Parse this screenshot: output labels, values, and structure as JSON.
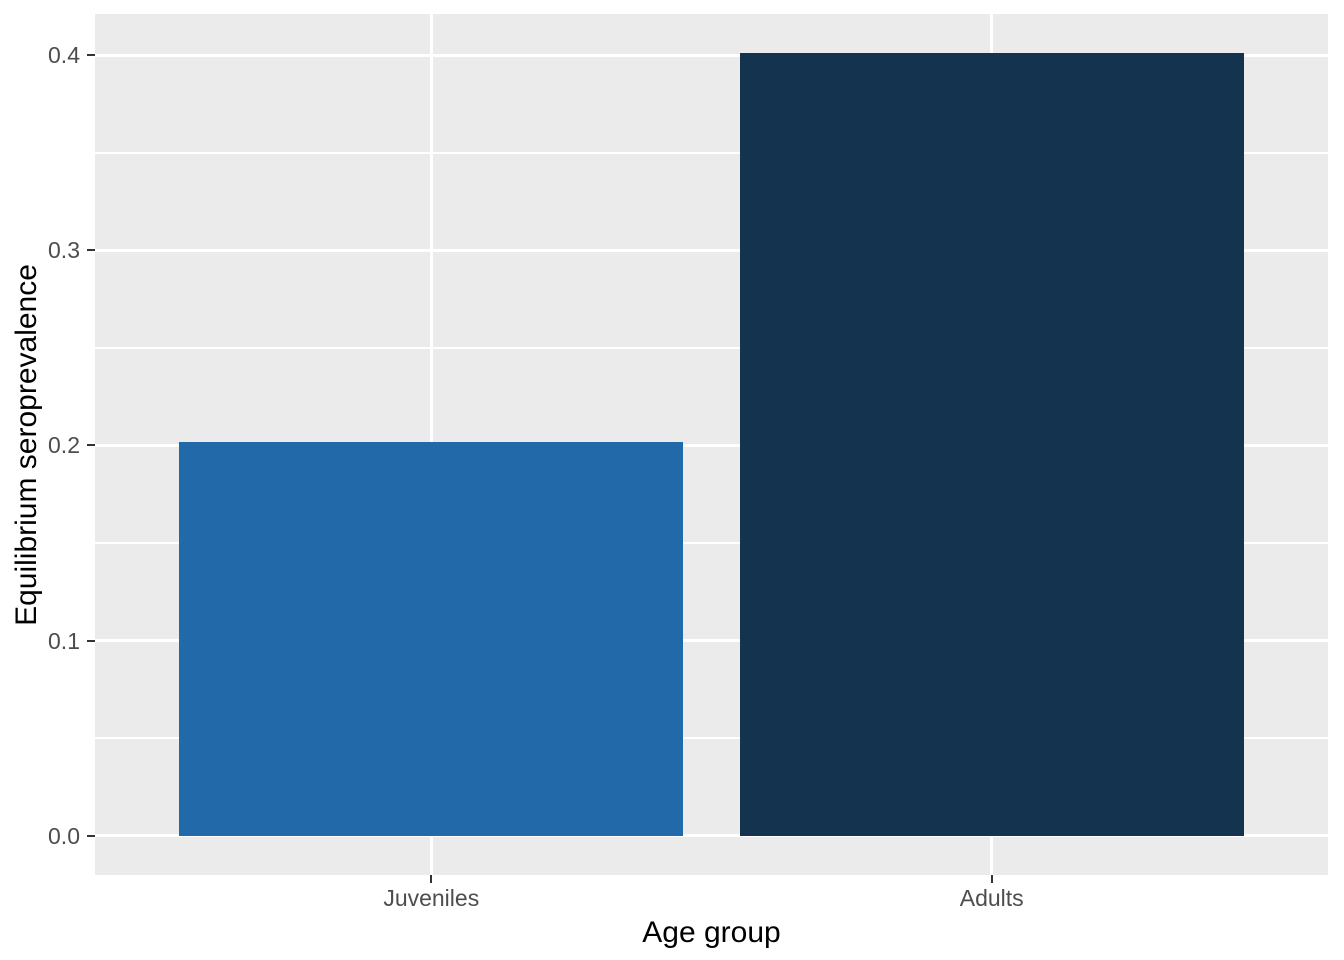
{
  "chart_data": {
    "type": "bar",
    "categories": [
      "Juveniles",
      "Adults"
    ],
    "values": [
      0.202,
      0.401
    ],
    "bar_colors": [
      "#2269A9",
      "#13334E"
    ],
    "title": "",
    "xlabel": "Age group",
    "ylabel": "Equilibrium seroprevalence",
    "y_ticks": [
      {
        "value": 0.0,
        "label": "0.0"
      },
      {
        "value": 0.1,
        "label": "0.1"
      },
      {
        "value": 0.2,
        "label": "0.2"
      },
      {
        "value": 0.3,
        "label": "0.3"
      },
      {
        "value": 0.4,
        "label": "0.4"
      }
    ],
    "y_minor_ticks": [
      0.05,
      0.15,
      0.25,
      0.35
    ],
    "ylim": [
      -0.0201,
      0.4211
    ],
    "grid": "major-and-minor, white on gray panel",
    "legend_position": "none",
    "style": {
      "panel_bg": "#EBEBEB",
      "grid_color": "#FFFFFF",
      "tick_label_color": "#4D4D4D",
      "tick_mark_color": "#333333",
      "axis_title_color": "#000000",
      "figure_bg": "#FFFFFF"
    }
  }
}
